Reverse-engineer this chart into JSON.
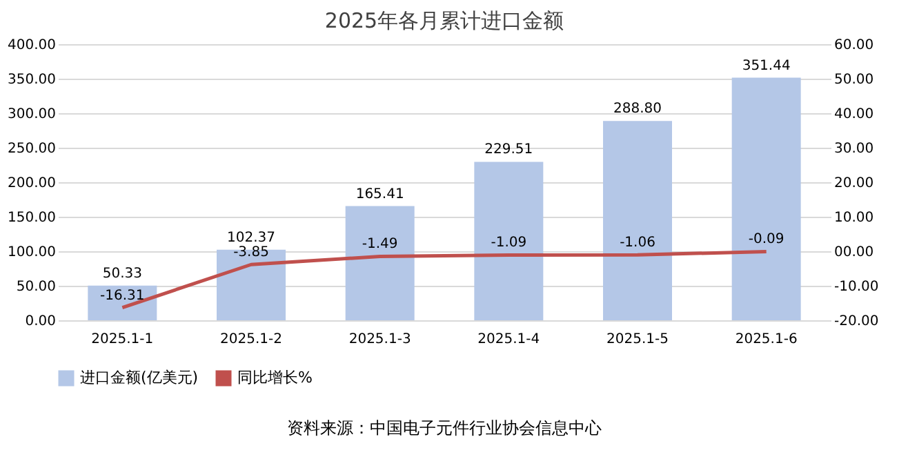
{
  "chart_data": {
    "type": "bar",
    "title": "2025年各月累计进口金额",
    "categories": [
      "2025.1-1",
      "2025.1-2",
      "2025.1-3",
      "2025.1-4",
      "2025.1-5",
      "2025.1-6"
    ],
    "series": [
      {
        "name": "进口金额(亿美元)",
        "color": "#b4c7e7",
        "values": [
          50.33,
          102.37,
          165.41,
          229.51,
          288.8,
          351.44
        ],
        "value_labels": [
          "50.33",
          "102.37",
          "165.41",
          "229.51",
          "288.80",
          "351.44"
        ]
      },
      {
        "name": "同比增长%",
        "type": "line",
        "axis": "y2",
        "color": "#c0504d",
        "values": [
          -16.31,
          -3.85,
          -1.49,
          -1.09,
          -1.06,
          -0.09
        ],
        "value_labels": [
          "-16.31",
          "-3.85",
          "-1.49",
          "-1.09",
          "-1.06",
          "-0.09"
        ]
      }
    ],
    "ylim": [
      0,
      400
    ],
    "yticks": [
      {
        "value": 0,
        "label": "0.00"
      },
      {
        "value": 50,
        "label": "50.00"
      },
      {
        "value": 100,
        "label": "100.00"
      },
      {
        "value": 150,
        "label": "150.00"
      },
      {
        "value": 200,
        "label": "200.00"
      },
      {
        "value": 250,
        "label": "250.00"
      },
      {
        "value": 300,
        "label": "300.00"
      },
      {
        "value": 350,
        "label": "350.00"
      },
      {
        "value": 400,
        "label": "400.00"
      }
    ],
    "y2lim": [
      -20,
      60
    ],
    "y2ticks": [
      {
        "value": -20,
        "label": "-20.00"
      },
      {
        "value": -10,
        "label": "-10.00"
      },
      {
        "value": 0,
        "label": "00.00"
      },
      {
        "value": 10,
        "label": "10.00"
      },
      {
        "value": 20,
        "label": "20.00"
      },
      {
        "value": 30,
        "label": "30.00"
      },
      {
        "value": 40,
        "label": "40.00"
      },
      {
        "value": 50,
        "label": "50.00"
      },
      {
        "value": 60,
        "label": "60.00"
      }
    ],
    "grid": "y",
    "legend": "bottom",
    "marker": "none",
    "line_style": "solid",
    "annotations": [
      "资料来源：中国电子元件行业协会信息中心"
    ]
  }
}
